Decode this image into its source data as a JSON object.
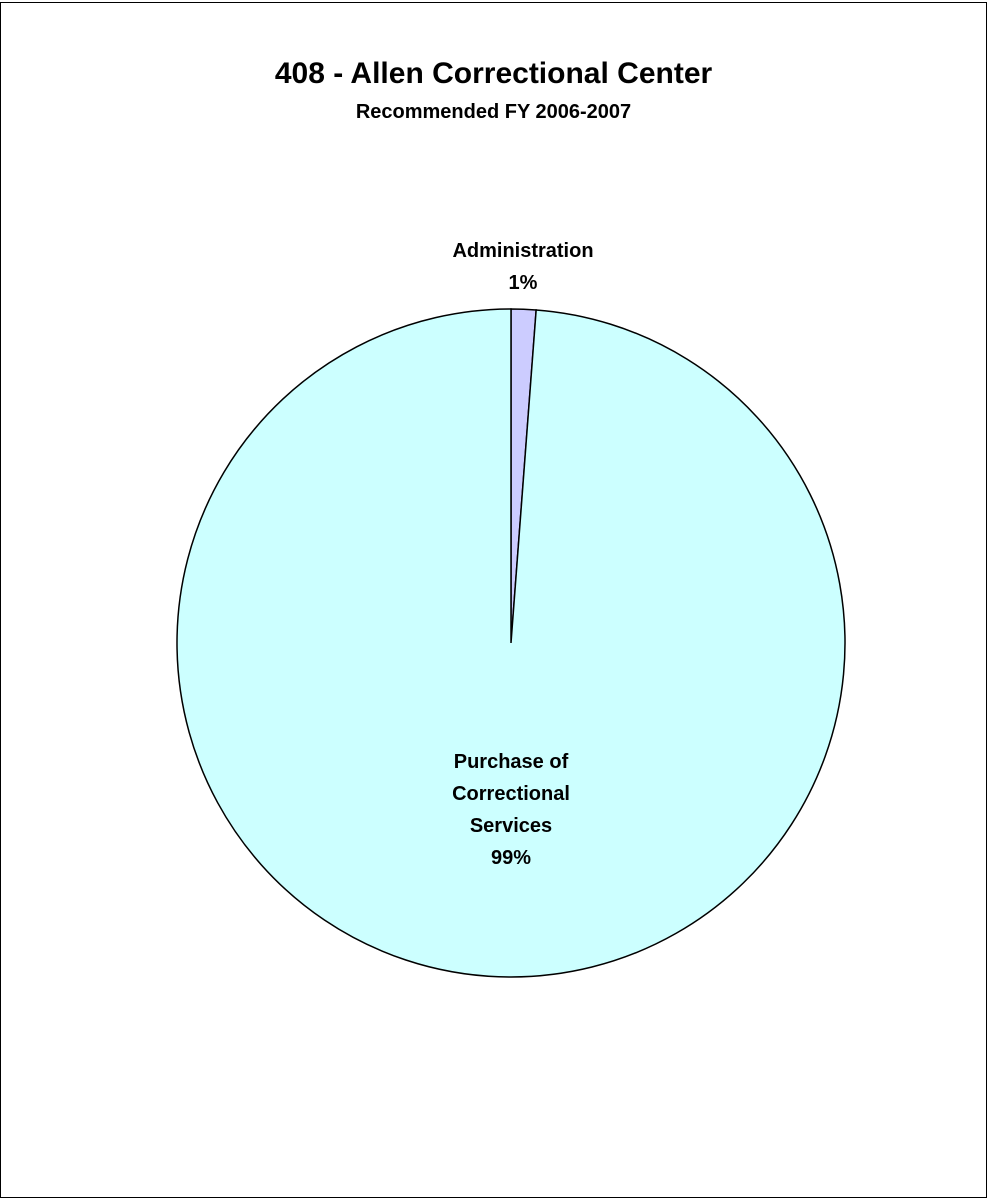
{
  "chart_data": {
    "type": "pie",
    "title": "408 - Allen Correctional Center",
    "subtitle": "Recommended FY 2006-2007",
    "slices": [
      {
        "label": "Administration",
        "pct_label": "1%",
        "value": 1.2,
        "color": "#CCCCFF"
      },
      {
        "label": "Purchase of Correctional Services",
        "label_lines": [
          "Purchase of",
          "Correctional",
          "Services"
        ],
        "pct_label": "99%",
        "value": 98.8,
        "color": "#CCFFFF"
      }
    ]
  }
}
